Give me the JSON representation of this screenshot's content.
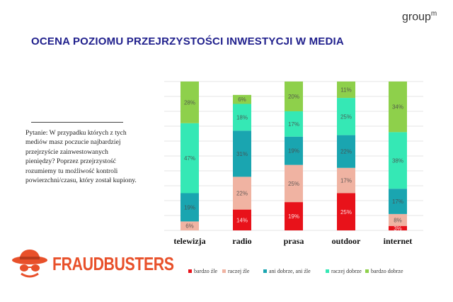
{
  "header": {
    "brand": "group",
    "brand_sup": "m"
  },
  "title": "OCENA POZIOMU PRZEJRZYSTOŚCI INWESTYCJI W MEDIA",
  "question": "Pytanie: W przypadku których z tych mediów masz poczucie najbardziej przejrzyście zainwestowanych pieniędzy? Poprzez przejrzystość rozumiemy tu możliwość kontroli powierzchni/czasu, który został kupiony.",
  "logo": {
    "text": "FRAUDBUSTERS"
  },
  "chart_data": {
    "type": "bar",
    "stacked": true,
    "categories": [
      "telewizja",
      "radio",
      "prasa",
      "outdoor",
      "internet"
    ],
    "ylim": [
      0,
      100
    ],
    "legend_position": "bottom",
    "series": [
      {
        "name": "bardzo źle",
        "color": "#e8121a",
        "values": [
          0,
          14,
          19,
          25,
          3
        ],
        "labels": [
          "",
          "14%",
          "19%",
          "25%",
          "3%"
        ]
      },
      {
        "name": "raczej źle",
        "color": "#f0b3a2",
        "values": [
          6,
          22,
          25,
          17,
          8
        ],
        "labels": [
          "6%",
          "22%",
          "25%",
          "17%",
          "8%"
        ]
      },
      {
        "name": "ani dobrze, ani źle",
        "color": "#1aa5b0",
        "values": [
          19,
          31,
          19,
          22,
          17
        ],
        "labels": [
          "19%",
          "31%",
          "19%",
          "22%",
          "17%"
        ]
      },
      {
        "name": "raczej dobrze",
        "color": "#35e8b5",
        "values": [
          47,
          18,
          17,
          25,
          38
        ],
        "labels": [
          "47%",
          "18%",
          "17%",
          "25%",
          "38%"
        ]
      },
      {
        "name": "bardzo dobrze",
        "color": "#8ed04b",
        "values": [
          28,
          6,
          20,
          11,
          34
        ],
        "labels": [
          "28%",
          "6%",
          "20%",
          "11%",
          "34%"
        ]
      }
    ]
  }
}
